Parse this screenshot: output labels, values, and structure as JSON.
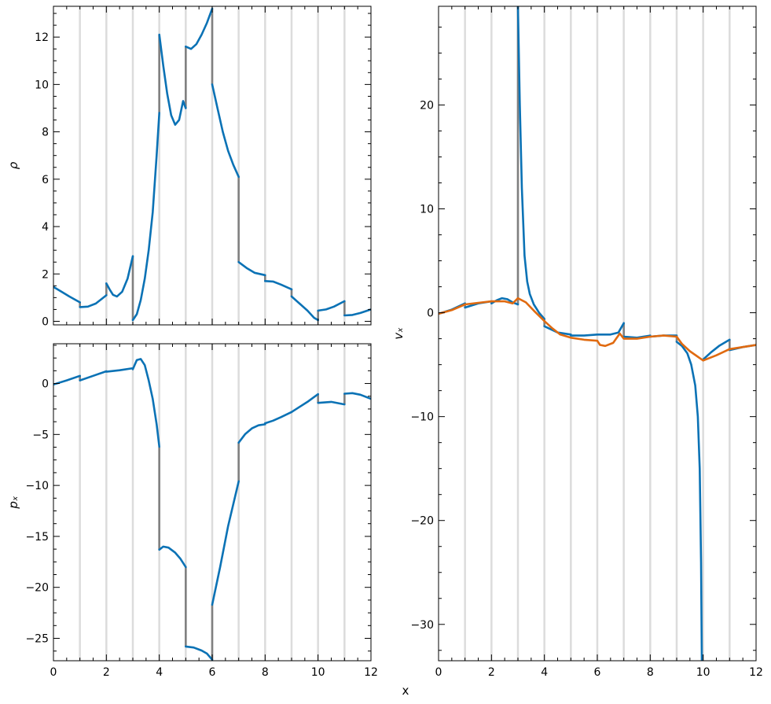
{
  "colors": {
    "blue": "#0b72b5",
    "orange": "#e06a10",
    "gray": "#808080",
    "vline": "#dcdcdc"
  },
  "figure": {
    "shared_xlabel": "x"
  },
  "chart_data": [
    {
      "type": "line",
      "title": "",
      "xlabel": "",
      "ylabel": "ρ",
      "xlim": [
        0,
        12
      ],
      "ylim": [
        -0.15,
        13.3
      ],
      "xticks": [
        0,
        2,
        4,
        6,
        8,
        10,
        12
      ],
      "yticks": [
        0,
        2,
        4,
        6,
        8,
        10,
        12
      ],
      "show_xtick_labels": false,
      "vertical_lines_x": [
        1,
        2,
        3,
        4,
        5,
        6,
        7,
        8,
        9,
        10,
        11
      ],
      "series": [
        {
          "color_key": "blue",
          "segments": [
            [
              [
                0,
                1.45
              ],
              [
                0.3,
                1.25
              ],
              [
                0.6,
                1.05
              ],
              [
                1,
                0.8
              ]
            ],
            [
              [
                1,
                0.6
              ],
              [
                1.3,
                0.62
              ],
              [
                1.6,
                0.75
              ],
              [
                2,
                1.1
              ]
            ],
            [
              [
                2,
                1.6
              ],
              [
                2.12,
                1.35
              ],
              [
                2.25,
                1.12
              ],
              [
                2.4,
                1.05
              ],
              [
                2.6,
                1.25
              ],
              [
                2.8,
                1.8
              ],
              [
                3,
                2.75
              ]
            ],
            [
              [
                3,
                0.05
              ],
              [
                3.15,
                0.3
              ],
              [
                3.3,
                0.9
              ],
              [
                3.45,
                1.8
              ],
              [
                3.6,
                3.0
              ],
              [
                3.75,
                4.6
              ],
              [
                3.9,
                7.0
              ],
              [
                4,
                8.8
              ]
            ],
            [
              [
                4,
                12.1
              ],
              [
                4.15,
                10.8
              ],
              [
                4.3,
                9.6
              ],
              [
                4.45,
                8.7
              ],
              [
                4.6,
                8.3
              ],
              [
                4.75,
                8.5
              ],
              [
                4.9,
                9.3
              ],
              [
                5,
                9.0
              ]
            ],
            [
              [
                5,
                11.6
              ],
              [
                5.2,
                11.5
              ],
              [
                5.4,
                11.7
              ],
              [
                5.6,
                12.1
              ],
              [
                5.8,
                12.6
              ],
              [
                6,
                13.2
              ]
            ],
            [
              [
                6,
                10.0
              ],
              [
                6.2,
                9.0
              ],
              [
                6.4,
                8.0
              ],
              [
                6.6,
                7.2
              ],
              [
                6.8,
                6.6
              ],
              [
                7,
                6.1
              ]
            ],
            [
              [
                7,
                2.5
              ],
              [
                7.3,
                2.25
              ],
              [
                7.6,
                2.05
              ],
              [
                8,
                1.95
              ]
            ],
            [
              [
                8,
                1.7
              ],
              [
                8.3,
                1.68
              ],
              [
                8.6,
                1.55
              ],
              [
                9,
                1.35
              ]
            ],
            [
              [
                9,
                1.05
              ],
              [
                9.3,
                0.75
              ],
              [
                9.6,
                0.45
              ],
              [
                9.85,
                0.15
              ],
              [
                10,
                0.05
              ]
            ],
            [
              [
                10,
                0.45
              ],
              [
                10.3,
                0.5
              ],
              [
                10.6,
                0.62
              ],
              [
                11,
                0.85
              ]
            ],
            [
              [
                11,
                0.25
              ],
              [
                11.3,
                0.27
              ],
              [
                11.6,
                0.35
              ],
              [
                12,
                0.5
              ]
            ]
          ],
          "jumps_color_key": "gray"
        }
      ]
    },
    {
      "type": "line",
      "title": "",
      "xlabel": "",
      "ylabel": "pₓ",
      "xlim": [
        0,
        12
      ],
      "ylim": [
        -27.2,
        3.9
      ],
      "xticks": [
        0,
        2,
        4,
        6,
        8,
        10,
        12
      ],
      "yticks": [
        0,
        -5,
        -10,
        -15,
        -20,
        -25
      ],
      "show_xtick_labels": true,
      "vertical_lines_x": [
        1,
        2,
        3,
        4,
        5,
        6,
        7,
        8,
        9,
        10,
        11
      ],
      "series": [
        {
          "color_key": "blue",
          "segments": [
            [
              [
                0,
                -0.1
              ],
              [
                0.5,
                0.3
              ],
              [
                1,
                0.75
              ]
            ],
            [
              [
                1,
                0.3
              ],
              [
                1.5,
                0.75
              ],
              [
                2,
                1.2
              ]
            ],
            [
              [
                2,
                1.15
              ],
              [
                2.5,
                1.3
              ],
              [
                3,
                1.5
              ]
            ],
            [
              [
                3,
                1.4
              ],
              [
                3.15,
                2.3
              ],
              [
                3.3,
                2.4
              ],
              [
                3.45,
                1.8
              ],
              [
                3.6,
                0.3
              ],
              [
                3.75,
                -1.5
              ],
              [
                3.9,
                -4.0
              ],
              [
                4,
                -6.2
              ]
            ],
            [
              [
                4,
                -16.3
              ],
              [
                4.15,
                -16.0
              ],
              [
                4.35,
                -16.1
              ],
              [
                4.6,
                -16.6
              ],
              [
                4.8,
                -17.2
              ],
              [
                5,
                -18.0
              ]
            ],
            [
              [
                5,
                -25.8
              ],
              [
                5.3,
                -25.9
              ],
              [
                5.6,
                -26.2
              ],
              [
                5.8,
                -26.5
              ],
              [
                6,
                -27.1
              ]
            ],
            [
              [
                6,
                -21.7
              ],
              [
                6.3,
                -18.0
              ],
              [
                6.6,
                -14.0
              ],
              [
                7,
                -9.6
              ]
            ],
            [
              [
                7,
                -5.8
              ],
              [
                7.25,
                -4.95
              ],
              [
                7.5,
                -4.4
              ],
              [
                7.75,
                -4.1
              ],
              [
                8,
                -4.0
              ]
            ],
            [
              [
                8,
                -3.9
              ],
              [
                8.3,
                -3.65
              ],
              [
                8.6,
                -3.3
              ],
              [
                9,
                -2.8
              ]
            ],
            [
              [
                9,
                -2.8
              ],
              [
                9.3,
                -2.3
              ],
              [
                9.6,
                -1.8
              ],
              [
                10,
                -1.05
              ]
            ],
            [
              [
                10,
                -1.9
              ],
              [
                10.5,
                -1.8
              ],
              [
                11,
                -2.05
              ]
            ],
            [
              [
                11,
                -1.0
              ],
              [
                11.3,
                -0.95
              ],
              [
                11.6,
                -1.1
              ],
              [
                12,
                -1.5
              ]
            ]
          ],
          "jumps_color_key": "gray"
        }
      ]
    },
    {
      "type": "line",
      "title": "",
      "xlabel": "x",
      "ylabel": "vₓ",
      "xlim": [
        0,
        12
      ],
      "ylim": [
        -33.5,
        29.5
      ],
      "xticks": [
        0,
        2,
        4,
        6,
        8,
        10,
        12
      ],
      "yticks": [
        20,
        10,
        0,
        -10,
        -20,
        -30
      ],
      "show_xtick_labels": true,
      "vertical_lines_x": [
        1,
        2,
        3,
        4,
        5,
        6,
        7,
        8,
        9,
        10,
        11
      ],
      "series": [
        {
          "color_key": "blue",
          "segments": [
            [
              [
                0,
                -0.1
              ],
              [
                0.5,
                0.3
              ],
              [
                1,
                0.9
              ]
            ],
            [
              [
                1,
                0.5
              ],
              [
                1.5,
                0.9
              ],
              [
                2,
                1.1
              ]
            ],
            [
              [
                2,
                0.9
              ],
              [
                2.2,
                1.2
              ],
              [
                2.4,
                1.4
              ],
              [
                2.6,
                1.3
              ],
              [
                2.8,
                1.0
              ],
              [
                3,
                0.8
              ]
            ],
            [
              [
                3,
                29.5
              ],
              [
                3.07,
                20.0
              ],
              [
                3.15,
                12.0
              ],
              [
                3.25,
                5.5
              ],
              [
                3.35,
                3.0
              ],
              [
                3.45,
                1.8
              ],
              [
                3.6,
                0.8
              ],
              [
                3.8,
                0.0
              ],
              [
                4,
                -0.6
              ]
            ],
            [
              [
                4,
                -1.3
              ],
              [
                4.5,
                -1.9
              ],
              [
                5,
                -2.1
              ]
            ],
            [
              [
                5,
                -2.2
              ],
              [
                5.5,
                -2.2
              ],
              [
                6,
                -2.1
              ]
            ],
            [
              [
                6,
                -2.1
              ],
              [
                6.5,
                -2.1
              ],
              [
                6.8,
                -1.9
              ],
              [
                7,
                -1.0
              ]
            ],
            [
              [
                7,
                -2.3
              ],
              [
                7.5,
                -2.4
              ],
              [
                8,
                -2.2
              ]
            ],
            [
              [
                8,
                -2.3
              ],
              [
                8.5,
                -2.2
              ],
              [
                9,
                -2.2
              ]
            ],
            [
              [
                9,
                -2.8
              ],
              [
                9.2,
                -3.2
              ],
              [
                9.4,
                -3.9
              ],
              [
                9.55,
                -5.0
              ],
              [
                9.7,
                -7.0
              ],
              [
                9.8,
                -10.0
              ],
              [
                9.87,
                -15.0
              ],
              [
                9.92,
                -24.0
              ],
              [
                9.95,
                -33.5
              ]
            ],
            [
              [
                10,
                -4.5
              ],
              [
                10.3,
                -3.8
              ],
              [
                10.6,
                -3.2
              ],
              [
                11,
                -2.6
              ]
            ],
            [
              [
                11,
                -3.6
              ],
              [
                11.5,
                -3.3
              ],
              [
                12,
                -3.1
              ]
            ]
          ],
          "jumps_color_key": "gray"
        },
        {
          "color_key": "orange",
          "segments": [
            [
              [
                0,
                -0.1
              ],
              [
                0.5,
                0.25
              ],
              [
                1,
                0.8
              ],
              [
                1.5,
                0.95
              ],
              [
                2,
                1.1
              ],
              [
                2.5,
                1.1
              ],
              [
                2.8,
                0.9
              ],
              [
                3,
                1.4
              ],
              [
                3.3,
                1.0
              ],
              [
                3.6,
                0.2
              ],
              [
                4,
                -0.8
              ],
              [
                4.3,
                -1.5
              ],
              [
                4.6,
                -2.1
              ],
              [
                5,
                -2.4
              ],
              [
                5.5,
                -2.6
              ],
              [
                6,
                -2.7
              ],
              [
                6.1,
                -3.1
              ],
              [
                6.3,
                -3.2
              ],
              [
                6.6,
                -2.9
              ],
              [
                6.85,
                -2.0
              ],
              [
                7,
                -2.5
              ],
              [
                7.5,
                -2.5
              ],
              [
                8,
                -2.3
              ],
              [
                8.5,
                -2.2
              ],
              [
                9,
                -2.3
              ],
              [
                9.2,
                -3.0
              ],
              [
                9.5,
                -3.7
              ],
              [
                10,
                -4.6
              ],
              [
                10.5,
                -4.1
              ],
              [
                11,
                -3.5
              ],
              [
                11.5,
                -3.3
              ],
              [
                12,
                -3.1
              ]
            ]
          ]
        }
      ]
    }
  ]
}
